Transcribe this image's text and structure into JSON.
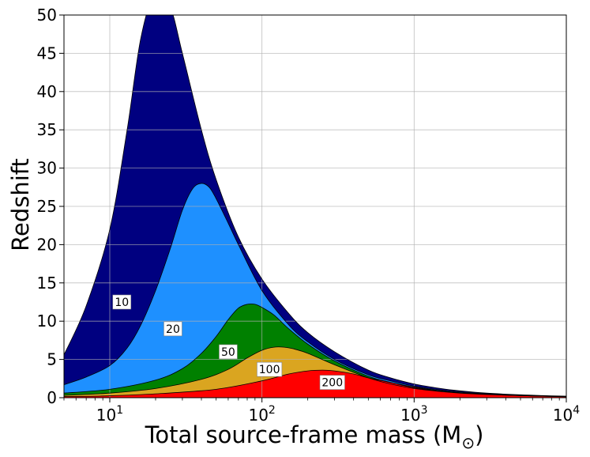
{
  "chart_data": {
    "type": "area",
    "title": "",
    "xlabel": "Total source-frame mass (M",
    "xlabel_sub": "⊙",
    "xlabel_close": ")",
    "ylabel": "Redshift",
    "xscale": "log",
    "xlim": [
      5,
      10000
    ],
    "ylim": [
      0,
      50
    ],
    "grid": true,
    "x_ticks": [
      {
        "value": 10,
        "base": "10",
        "exp": "1"
      },
      {
        "value": 100,
        "base": "10",
        "exp": "2"
      },
      {
        "value": 1000,
        "base": "10",
        "exp": "3"
      },
      {
        "value": 10000,
        "base": "10",
        "exp": "4"
      }
    ],
    "y_ticks": [
      "0",
      "5",
      "10",
      "15",
      "20",
      "25",
      "30",
      "35",
      "40",
      "45",
      "50"
    ],
    "series": [
      {
        "name": "10",
        "color": "#000080",
        "label_at": [
          12,
          12.5
        ],
        "x": [
          5,
          7,
          10,
          13,
          16,
          20,
          25,
          30,
          40,
          50,
          70,
          100,
          150,
          200,
          300,
          500,
          700,
          1000,
          1500,
          2000,
          3000,
          5000,
          7000,
          10000
        ],
        "y": [
          5.6,
          12,
          22,
          35,
          47,
          53,
          51,
          45,
          35,
          28.5,
          21,
          15.5,
          11,
          8.5,
          6,
          3.6,
          2.6,
          1.8,
          1.2,
          0.9,
          0.6,
          0.38,
          0.28,
          0.2
        ]
      },
      {
        "name": "20",
        "color": "#1e90ff",
        "label_at": [
          26,
          9
        ],
        "x": [
          5,
          7,
          10,
          13,
          16,
          20,
          25,
          30,
          35,
          40,
          45,
          50,
          60,
          70,
          100,
          150,
          200,
          300,
          500,
          700,
          1000,
          1500,
          2000,
          3000,
          5000,
          7000,
          10000
        ],
        "y": [
          1.7,
          2.7,
          4.2,
          6.5,
          9.5,
          14,
          19.5,
          24.5,
          27.3,
          28,
          27.5,
          26,
          22.8,
          20,
          14,
          9.5,
          7.3,
          5,
          3,
          2.2,
          1.5,
          1,
          0.75,
          0.5,
          0.3,
          0.22,
          0.15
        ]
      },
      {
        "name": "50",
        "color": "#008000",
        "label_at": [
          60,
          6
        ],
        "x": [
          5,
          10,
          20,
          30,
          40,
          50,
          60,
          70,
          80,
          90,
          100,
          120,
          150,
          200,
          300,
          500,
          700,
          1000,
          1500,
          2000,
          3000,
          5000,
          7000,
          10000
        ],
        "y": [
          0.6,
          1.1,
          2.3,
          3.8,
          5.8,
          8,
          10.2,
          11.7,
          12.2,
          12.2,
          11.8,
          10.8,
          9,
          7,
          4.8,
          2.8,
          2,
          1.3,
          0.85,
          0.65,
          0.45,
          0.28,
          0.2,
          0.14
        ]
      },
      {
        "name": "100",
        "color": "#daa520",
        "label_at": [
          112,
          3.7
        ],
        "x": [
          5,
          10,
          20,
          40,
          60,
          80,
          100,
          120,
          140,
          160,
          200,
          300,
          500,
          700,
          1000,
          1500,
          2000,
          3000,
          5000,
          7000,
          10000
        ],
        "y": [
          0.3,
          0.6,
          1.2,
          2.4,
          3.7,
          5.2,
          6.2,
          6.6,
          6.6,
          6.4,
          5.8,
          4.3,
          2.6,
          1.8,
          1.2,
          0.8,
          0.6,
          0.42,
          0.27,
          0.2,
          0.13
        ]
      },
      {
        "name": "200",
        "color": "#ff0000",
        "label_at": [
          290,
          2
        ],
        "x": [
          5,
          10,
          20,
          50,
          100,
          150,
          200,
          250,
          300,
          400,
          500,
          700,
          1000,
          1500,
          2000,
          3000,
          5000,
          7000,
          10000
        ],
        "y": [
          0.15,
          0.25,
          0.5,
          1.1,
          2.2,
          3.1,
          3.5,
          3.6,
          3.5,
          3.1,
          2.6,
          2,
          1.4,
          0.9,
          0.65,
          0.45,
          0.28,
          0.2,
          0.12
        ]
      }
    ]
  }
}
